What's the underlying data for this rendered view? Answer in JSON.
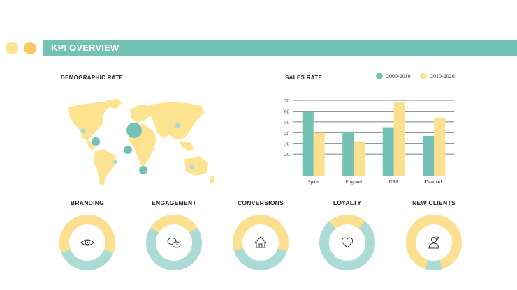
{
  "header": {
    "title": "KPI OVERVIEW"
  },
  "colors": {
    "teal": "#74c1b5",
    "yellow": "#fce08f",
    "light_teal": "#acdbd6",
    "dot1": "#fde38f",
    "dot2": "#fcc660"
  },
  "map": {
    "title": "DEMOGRAPHIC RATE"
  },
  "sales": {
    "title": "SALES RATE"
  },
  "legend": [
    {
      "label": "2000-2010",
      "color": "#74c1b5"
    },
    {
      "label": "2010-2020",
      "color": "#fce08f"
    }
  ],
  "chart_data": {
    "type": "bar",
    "title": "SALES RATE",
    "categories": [
      "Spain",
      "England",
      "USA",
      "Denmark"
    ],
    "series": [
      {
        "name": "2000-2010",
        "values": [
          60,
          41,
          45,
          37
        ]
      },
      {
        "name": "2010-2020",
        "values": [
          40,
          32,
          68,
          54
        ]
      }
    ],
    "ylim": [
      0,
      70
    ],
    "yticks": [
      20,
      30,
      40,
      50,
      60,
      70
    ],
    "xlabel": "",
    "ylabel": ""
  },
  "kpis": [
    {
      "title": "BRANDING",
      "icon": "eye-icon",
      "primary": 0.62
    },
    {
      "title": "ENGAGEMENT",
      "icon": "chat-bubbles-icon",
      "primary": 0.32
    },
    {
      "title": "CONVERSIONS",
      "icon": "house-icon",
      "primary": 0.6
    },
    {
      "title": "LOYALTY",
      "icon": "heart-icon",
      "primary": 0.22
    },
    {
      "title": "NEW CLIENTS",
      "icon": "person-icon",
      "primary": 0.9
    }
  ]
}
